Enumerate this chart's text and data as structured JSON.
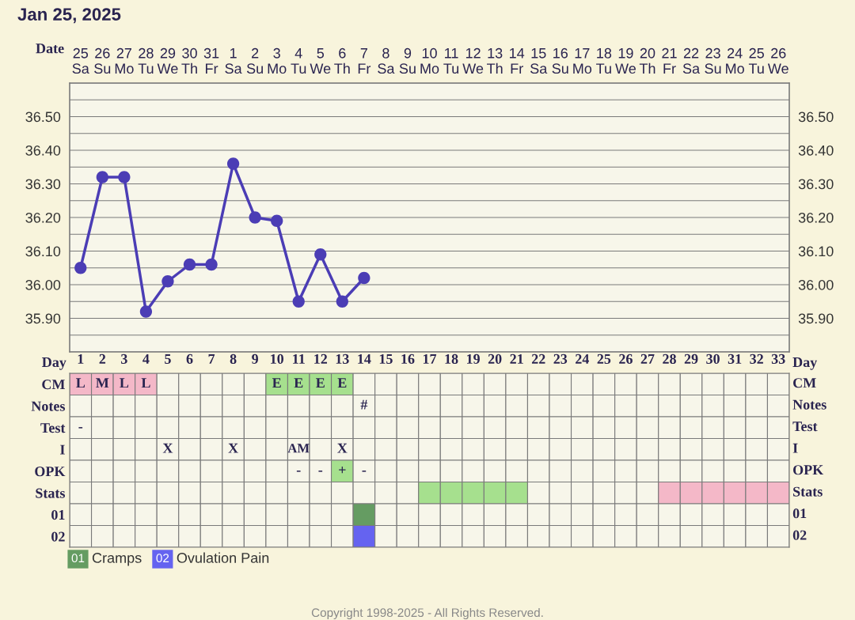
{
  "chart_data": [
    {
      "type": "line",
      "title": "Jan 25, 2025",
      "xlabel": "Date",
      "categories": [
        "25\nSa",
        "26\nSu",
        "27\nMo",
        "28\nTu",
        "29\nWe",
        "30\nTh",
        "31\nFr",
        "1\nSa",
        "2\nSu",
        "3\nMo",
        "4\nTu",
        "5\nWe",
        "6\nTh",
        "7\nFr",
        "8\nSa",
        "9\nSu",
        "10\nMo",
        "11\nTu",
        "12\nWe",
        "13\nTh",
        "14\nFr",
        "15\nSa",
        "16\nSu",
        "17\nMo",
        "18\nTu",
        "19\nWe",
        "20\nTh",
        "21\nFr",
        "22\nSa",
        "23\nSu",
        "24\nMo",
        "25\nTu",
        "26\nWe"
      ],
      "series": [
        {
          "color": "#4b3db5",
          "values": [
            36.05,
            36.32,
            36.32,
            35.92,
            36.01,
            36.06,
            36.06,
            36.36,
            36.2,
            36.19,
            35.95,
            36.09,
            35.95,
            36.02,
            null,
            null,
            null,
            null,
            null,
            null,
            null,
            null,
            null,
            null,
            null,
            null,
            null,
            null,
            null,
            null,
            null,
            null,
            null
          ]
        }
      ],
      "marker": "circle",
      "line_style": "solid",
      "grid": true,
      "ylim": [
        35.8,
        36.6
      ],
      "yticks": [
        {
          "value": 35.8,
          "label": null
        },
        {
          "value": 35.85,
          "label": null
        },
        {
          "value": 35.9,
          "label": "35.90"
        },
        {
          "value": 35.95,
          "label": null
        },
        {
          "value": 36.0,
          "label": "36.00"
        },
        {
          "value": 36.05,
          "label": null
        },
        {
          "value": 36.1,
          "label": "36.10"
        },
        {
          "value": 36.15,
          "label": null
        },
        {
          "value": 36.2,
          "label": "36.20"
        },
        {
          "value": 36.25,
          "label": null
        },
        {
          "value": 36.3,
          "label": "36.30"
        },
        {
          "value": 36.35,
          "label": null
        },
        {
          "value": 36.4,
          "label": "36.40"
        },
        {
          "value": 36.45,
          "label": null
        },
        {
          "value": 36.5,
          "label": "36.50"
        },
        {
          "value": 36.55,
          "label": null
        },
        {
          "value": 36.6,
          "label": null
        }
      ],
      "y2lim": [
        35.8,
        36.6
      ],
      "y2ticks": [
        {
          "value": 35.9,
          "label": "35.90"
        },
        {
          "value": 36.0,
          "label": "36.00"
        },
        {
          "value": 36.1,
          "label": "36.10"
        },
        {
          "value": 36.2,
          "label": "36.20"
        },
        {
          "value": 36.3,
          "label": "36.30"
        },
        {
          "value": 36.4,
          "label": "36.40"
        },
        {
          "value": 36.5,
          "label": "36.50"
        }
      ]
    },
    {
      "type": "heatmap",
      "xlabel": "Day",
      "categories": [
        "1",
        "2",
        "3",
        "4",
        "5",
        "6",
        "7",
        "8",
        "9",
        "10",
        "11",
        "12",
        "13",
        "14",
        "15",
        "16",
        "17",
        "18",
        "19",
        "20",
        "21",
        "22",
        "23",
        "24",
        "25",
        "26",
        "27",
        "28",
        "29",
        "30",
        "31",
        "32",
        "33"
      ],
      "y_categories": [
        "CM",
        "Notes",
        "Test",
        "I",
        "OPK",
        "Stats",
        "01",
        "02"
      ],
      "y2_categories": [
        "CM",
        "Notes",
        "Test",
        "I",
        "OPK",
        "Stats",
        "01",
        "02"
      ],
      "cell_labels": [
        [
          "L",
          "M",
          "L",
          "L",
          null,
          null,
          null,
          null,
          null,
          "E",
          "E",
          "E",
          "E",
          null,
          null,
          null,
          null,
          null,
          null,
          null,
          null,
          null,
          null,
          null,
          null,
          null,
          null,
          null,
          null,
          null,
          null,
          null,
          null
        ],
        [
          null,
          null,
          null,
          null,
          null,
          null,
          null,
          null,
          null,
          null,
          null,
          null,
          null,
          "#",
          null,
          null,
          null,
          null,
          null,
          null,
          null,
          null,
          null,
          null,
          null,
          null,
          null,
          null,
          null,
          null,
          null,
          null,
          null
        ],
        [
          "-",
          null,
          null,
          null,
          null,
          null,
          null,
          null,
          null,
          null,
          null,
          null,
          null,
          null,
          null,
          null,
          null,
          null,
          null,
          null,
          null,
          null,
          null,
          null,
          null,
          null,
          null,
          null,
          null,
          null,
          null,
          null,
          null
        ],
        [
          null,
          null,
          null,
          null,
          "X",
          null,
          null,
          "X",
          null,
          null,
          "AM",
          null,
          "X",
          null,
          null,
          null,
          null,
          null,
          null,
          null,
          null,
          null,
          null,
          null,
          null,
          null,
          null,
          null,
          null,
          null,
          null,
          null,
          null
        ],
        [
          null,
          null,
          null,
          null,
          null,
          null,
          null,
          null,
          null,
          null,
          "-",
          "-",
          "+",
          "-",
          null,
          null,
          null,
          null,
          null,
          null,
          null,
          null,
          null,
          null,
          null,
          null,
          null,
          null,
          null,
          null,
          null,
          null,
          null
        ],
        [
          null,
          null,
          null,
          null,
          null,
          null,
          null,
          null,
          null,
          null,
          null,
          null,
          null,
          null,
          null,
          null,
          null,
          null,
          null,
          null,
          null,
          null,
          null,
          null,
          null,
          null,
          null,
          null,
          null,
          null,
          null,
          null,
          null
        ],
        [
          null,
          null,
          null,
          null,
          null,
          null,
          null,
          null,
          null,
          null,
          null,
          null,
          null,
          null,
          null,
          null,
          null,
          null,
          null,
          null,
          null,
          null,
          null,
          null,
          null,
          null,
          null,
          null,
          null,
          null,
          null,
          null,
          null
        ],
        [
          null,
          null,
          null,
          null,
          null,
          null,
          null,
          null,
          null,
          null,
          null,
          null,
          null,
          null,
          null,
          null,
          null,
          null,
          null,
          null,
          null,
          null,
          null,
          null,
          null,
          null,
          null,
          null,
          null,
          null,
          null,
          null,
          null
        ]
      ],
      "colors": [
        [
          "#f4b8c8",
          "#f4b8c8",
          "#f4b8c8",
          "#f4b8c8",
          null,
          null,
          null,
          null,
          null,
          "#a6e08e",
          "#a6e08e",
          "#a6e08e",
          "#a6e08e",
          null,
          null,
          null,
          null,
          null,
          null,
          null,
          null,
          null,
          null,
          null,
          null,
          null,
          null,
          null,
          null,
          null,
          null,
          null,
          null
        ],
        [
          null,
          null,
          null,
          null,
          null,
          null,
          null,
          null,
          null,
          null,
          null,
          null,
          null,
          null,
          null,
          null,
          null,
          null,
          null,
          null,
          null,
          null,
          null,
          null,
          null,
          null,
          null,
          null,
          null,
          null,
          null,
          null,
          null
        ],
        [
          null,
          null,
          null,
          null,
          null,
          null,
          null,
          null,
          null,
          null,
          null,
          null,
          null,
          null,
          null,
          null,
          null,
          null,
          null,
          null,
          null,
          null,
          null,
          null,
          null,
          null,
          null,
          null,
          null,
          null,
          null,
          null,
          null
        ],
        [
          null,
          null,
          null,
          null,
          null,
          null,
          null,
          null,
          null,
          null,
          null,
          null,
          null,
          null,
          null,
          null,
          null,
          null,
          null,
          null,
          null,
          null,
          null,
          null,
          null,
          null,
          null,
          null,
          null,
          null,
          null,
          null,
          null
        ],
        [
          null,
          null,
          null,
          null,
          null,
          null,
          null,
          null,
          null,
          null,
          null,
          null,
          "#a6e08e",
          null,
          null,
          null,
          null,
          null,
          null,
          null,
          null,
          null,
          null,
          null,
          null,
          null,
          null,
          null,
          null,
          null,
          null,
          null,
          null
        ],
        [
          null,
          null,
          null,
          null,
          null,
          null,
          null,
          null,
          null,
          null,
          null,
          null,
          null,
          null,
          null,
          null,
          "#a6e08e",
          "#a6e08e",
          "#a6e08e",
          "#a6e08e",
          "#a6e08e",
          null,
          null,
          null,
          null,
          null,
          null,
          "#f4b8c8",
          "#f4b8c8",
          "#f4b8c8",
          "#f4b8c8",
          "#f4b8c8",
          "#f4b8c8"
        ],
        [
          null,
          null,
          null,
          null,
          null,
          null,
          null,
          null,
          null,
          null,
          null,
          null,
          null,
          "#659c62",
          null,
          null,
          null,
          null,
          null,
          null,
          null,
          null,
          null,
          null,
          null,
          null,
          null,
          null,
          null,
          null,
          null,
          null,
          null
        ],
        [
          null,
          null,
          null,
          null,
          null,
          null,
          null,
          null,
          null,
          null,
          null,
          null,
          null,
          "#6563f0",
          null,
          null,
          null,
          null,
          null,
          null,
          null,
          null,
          null,
          null,
          null,
          null,
          null,
          null,
          null,
          null,
          null,
          null,
          null
        ]
      ],
      "cells": [
        [
          null,
          null,
          null,
          null,
          null,
          null,
          null,
          null,
          null,
          null,
          null,
          null,
          null,
          null,
          null,
          null,
          null,
          null,
          null,
          null,
          null,
          null,
          null,
          null,
          null,
          null,
          null,
          null,
          null,
          null,
          null,
          null,
          null
        ],
        [
          null,
          null,
          null,
          null,
          null,
          null,
          null,
          null,
          null,
          null,
          null,
          null,
          null,
          null,
          null,
          null,
          null,
          null,
          null,
          null,
          null,
          null,
          null,
          null,
          null,
          null,
          null,
          null,
          null,
          null,
          null,
          null,
          null
        ],
        [
          null,
          null,
          null,
          null,
          null,
          null,
          null,
          null,
          null,
          null,
          null,
          null,
          null,
          null,
          null,
          null,
          null,
          null,
          null,
          null,
          null,
          null,
          null,
          null,
          null,
          null,
          null,
          null,
          null,
          null,
          null,
          null,
          null
        ],
        [
          null,
          null,
          null,
          null,
          null,
          null,
          null,
          null,
          null,
          null,
          null,
          null,
          null,
          null,
          null,
          null,
          null,
          null,
          null,
          null,
          null,
          null,
          null,
          null,
          null,
          null,
          null,
          null,
          null,
          null,
          null,
          null,
          null
        ],
        [
          null,
          null,
          null,
          null,
          null,
          null,
          null,
          null,
          null,
          null,
          null,
          null,
          null,
          null,
          null,
          null,
          null,
          null,
          null,
          null,
          null,
          null,
          null,
          null,
          null,
          null,
          null,
          null,
          null,
          null,
          null,
          null,
          null
        ],
        [
          null,
          null,
          null,
          null,
          null,
          null,
          null,
          null,
          null,
          null,
          null,
          null,
          null,
          null,
          null,
          null,
          null,
          null,
          null,
          null,
          null,
          null,
          null,
          null,
          null,
          null,
          null,
          null,
          null,
          null,
          null,
          null,
          null
        ],
        [
          null,
          null,
          null,
          null,
          null,
          null,
          null,
          null,
          null,
          null,
          null,
          null,
          null,
          null,
          null,
          null,
          null,
          null,
          null,
          null,
          null,
          null,
          null,
          null,
          null,
          null,
          null,
          null,
          null,
          null,
          null,
          null,
          null
        ],
        [
          null,
          null,
          null,
          null,
          null,
          null,
          null,
          null,
          null,
          null,
          null,
          null,
          null,
          null,
          null,
          null,
          null,
          null,
          null,
          null,
          null,
          null,
          null,
          null,
          null,
          null,
          null,
          null,
          null,
          null,
          null,
          null,
          null
        ]
      ],
      "annotations": [
        "Cramps",
        "Ovulation Pain",
        "Copyright 1998-2025 - All Rights Reserved."
      ]
    }
  ]
}
